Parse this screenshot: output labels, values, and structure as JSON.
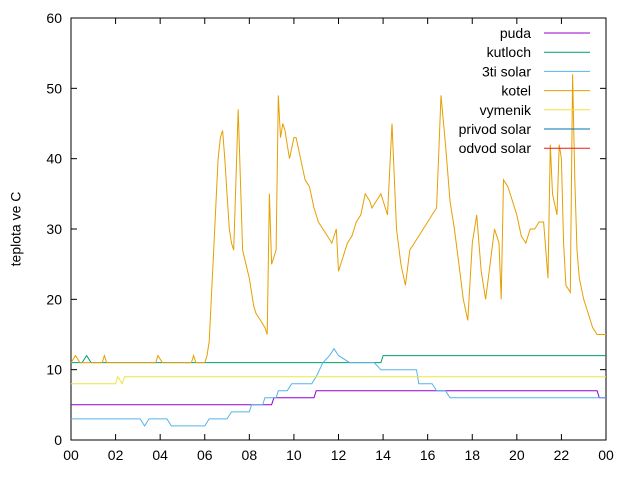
{
  "chart_data": {
    "type": "line",
    "ylabel": "teplota ve C",
    "xlabel": "",
    "title": "",
    "ylim": [
      0,
      60
    ],
    "xlim": [
      0,
      24
    ],
    "grid": false,
    "legend_position": "top-right",
    "x_tick_labels": [
      "00",
      "02",
      "04",
      "06",
      "08",
      "10",
      "12",
      "14",
      "16",
      "18",
      "20",
      "22",
      "00"
    ],
    "y_tick_labels": [
      "0",
      "10",
      "20",
      "30",
      "40",
      "50",
      "60"
    ],
    "series": [
      {
        "name": "puda",
        "color": "#9400d3",
        "x": [
          0,
          8.0,
          8.1,
          9.0,
          9.1,
          10.9,
          11.0,
          23.6,
          23.7,
          24
        ],
        "y": [
          5,
          5,
          5,
          5,
          6,
          6,
          7,
          7,
          6,
          6
        ]
      },
      {
        "name": "kutloch",
        "color": "#009e73",
        "x": [
          0,
          0.5,
          0.7,
          0.9,
          1.1,
          13.9,
          14.0,
          24
        ],
        "y": [
          11,
          11,
          12,
          11,
          11,
          11,
          12,
          12
        ]
      },
      {
        "name": "3ti solar",
        "color": "#56b4e9",
        "x": [
          0,
          3.1,
          3.3,
          3.5,
          4.3,
          4.5,
          6.0,
          6.2,
          7.0,
          7.2,
          8.0,
          8.1,
          8.6,
          8.7,
          9.2,
          9.3,
          9.7,
          9.9,
          10.8,
          11.0,
          11.3,
          11.6,
          11.8,
          12.0,
          12.5,
          13.6,
          13.9,
          14.0,
          15.5,
          15.6,
          16.2,
          16.4,
          16.8,
          17.0,
          24
        ],
        "y": [
          3,
          3,
          2,
          3,
          3,
          2,
          2,
          3,
          3,
          4,
          4,
          5,
          5,
          6,
          6,
          7,
          7,
          8,
          8,
          9,
          11,
          12,
          13,
          12,
          11,
          11,
          10,
          10,
          10,
          8,
          8,
          7,
          7,
          6,
          6
        ]
      },
      {
        "name": "kotel",
        "color": "#e69f00",
        "x": [
          0,
          0.2,
          0.4,
          1.4,
          1.5,
          1.6,
          3.8,
          3.9,
          4.1,
          5.4,
          5.5,
          5.6,
          6.0,
          6.1,
          6.2,
          6.4,
          6.6,
          6.7,
          6.8,
          6.9,
          7.0,
          7.1,
          7.2,
          7.3,
          7.5,
          7.7,
          8.0,
          8.2,
          8.3,
          8.5,
          8.7,
          8.8,
          8.9,
          9.0,
          9.2,
          9.3,
          9.4,
          9.5,
          9.6,
          9.7,
          9.8,
          10.0,
          10.1,
          10.3,
          10.5,
          10.7,
          10.9,
          11.0,
          11.1,
          11.3,
          11.5,
          11.7,
          11.9,
          12.0,
          12.2,
          12.4,
          12.6,
          12.8,
          13.0,
          13.2,
          13.4,
          13.5,
          13.7,
          13.9,
          14.0,
          14.2,
          14.4,
          14.6,
          14.8,
          15.0,
          15.2,
          15.4,
          15.6,
          15.8,
          16.0,
          16.2,
          16.4,
          16.6,
          16.8,
          17.0,
          17.2,
          17.4,
          17.6,
          17.8,
          18.0,
          18.2,
          18.4,
          18.6,
          18.8,
          19.0,
          19.2,
          19.3,
          19.4,
          19.6,
          19.8,
          20.0,
          20.2,
          20.4,
          20.6,
          20.8,
          21.0,
          21.2,
          21.4,
          21.5,
          21.6,
          21.8,
          21.9,
          22.0,
          22.1,
          22.2,
          22.4,
          22.5,
          22.6,
          22.7,
          22.8,
          23.0,
          23.2,
          23.4,
          23.6,
          23.8,
          24.0
        ],
        "y": [
          11,
          12,
          11,
          11,
          12,
          11,
          11,
          12,
          11,
          11,
          12,
          11,
          11,
          12,
          14,
          27,
          40,
          43,
          44,
          40,
          35,
          30,
          28,
          27,
          47,
          27,
          23,
          19,
          18,
          17,
          16,
          15,
          35,
          25,
          27,
          49,
          43,
          45,
          44,
          42,
          40,
          43,
          43,
          40,
          37,
          36,
          33,
          32,
          31,
          30,
          29,
          28,
          30,
          24,
          26,
          28,
          29,
          31,
          32,
          35,
          34,
          33,
          34,
          35,
          34,
          32,
          45,
          30,
          25,
          22,
          27,
          28,
          29,
          30,
          31,
          32,
          33,
          49,
          42,
          34,
          30,
          25,
          20,
          17,
          28,
          32,
          24,
          20,
          25,
          30,
          28,
          20,
          37,
          36,
          34,
          32,
          29,
          28,
          30,
          30,
          31,
          31,
          23,
          42,
          35,
          32,
          42,
          40,
          28,
          22,
          21,
          52,
          37,
          27,
          23,
          20,
          18,
          16,
          15,
          15,
          15
        ]
      },
      {
        "name": "vymenik",
        "color": "#f0e442",
        "x": [
          0,
          2.0,
          2.1,
          2.3,
          2.4,
          2.5,
          2.6,
          24
        ],
        "y": [
          8,
          8,
          9,
          8,
          9,
          9,
          9,
          9
        ]
      },
      {
        "name": "privod solar",
        "color": "#0072b2",
        "x": [],
        "y": []
      },
      {
        "name": "odvod solar",
        "color": "#e51e10",
        "x": [],
        "y": []
      }
    ]
  }
}
